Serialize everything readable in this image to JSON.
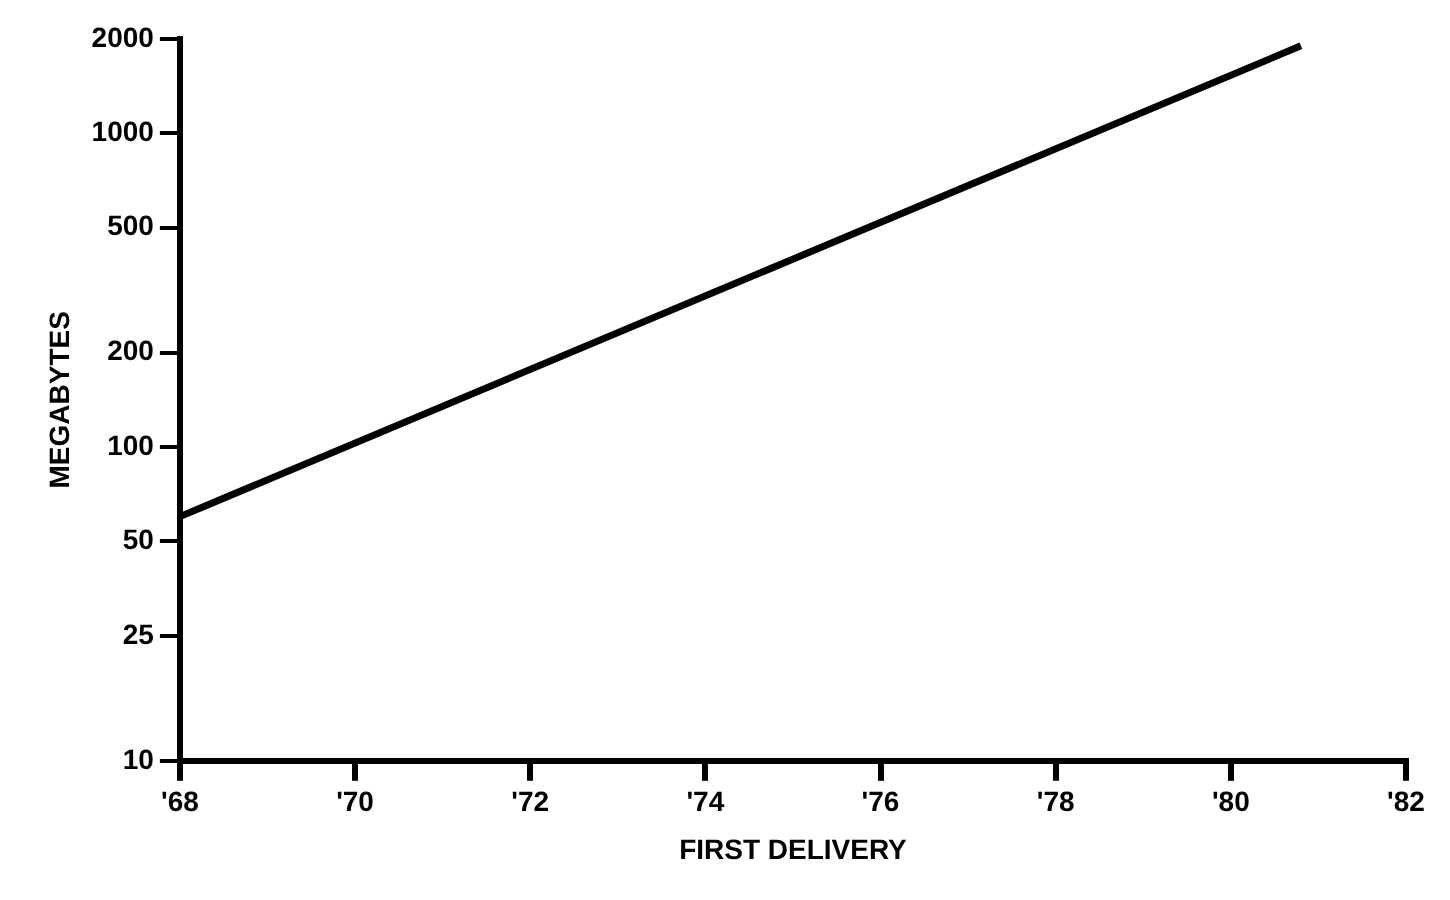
{
  "chart_data": {
    "type": "line",
    "xlabel": "FIRST DELIVERY",
    "ylabel": "MEGABYTES",
    "series": [
      {
        "color": "#000000",
        "x": [
          1968,
          1980.8
        ],
        "values": [
          60,
          1900
        ]
      }
    ],
    "log": true,
    "grid": false,
    "legend": false,
    "marker": "none",
    "line_style": "solid",
    "xlim": [
      1968,
      1982
    ],
    "xticks": [
      {
        "value": 1968,
        "label": "'68"
      },
      {
        "value": 1970,
        "label": "'70"
      },
      {
        "value": 1972,
        "label": "'72"
      },
      {
        "value": 1974,
        "label": "'74"
      },
      {
        "value": 1976,
        "label": "'76"
      },
      {
        "value": 1978,
        "label": "'78"
      },
      {
        "value": 1980,
        "label": "'80"
      },
      {
        "value": 1982,
        "label": "'82"
      }
    ],
    "ylim": [
      10,
      2000
    ],
    "yticks": [
      10,
      25,
      50,
      100,
      200,
      500,
      1000,
      2000
    ]
  }
}
